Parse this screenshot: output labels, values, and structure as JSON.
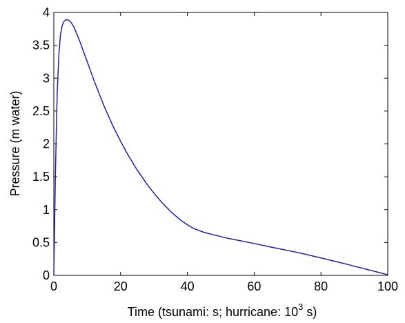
{
  "chart_data": {
    "type": "line",
    "title": "",
    "xlabel": "Time (tsunami: s; hurricane: 10",
    "xlabel_sup": "3",
    "xlabel_tail": " s)",
    "ylabel": "Pressure (m water)",
    "xlim": [
      0,
      100
    ],
    "ylim": [
      0,
      4
    ],
    "xticks": [
      0,
      20,
      40,
      60,
      80,
      100
    ],
    "yticks": [
      0,
      0.5,
      1,
      1.5,
      2,
      2.5,
      3,
      3.5,
      4
    ],
    "xtick_labels": [
      "0",
      "20",
      "40",
      "60",
      "80",
      "100"
    ],
    "ytick_labels": [
      "0",
      "0.5",
      "1",
      "1.5",
      "2",
      "2.5",
      "3",
      "3.5",
      "4"
    ],
    "grid": false,
    "line_color": "#1f1f9e",
    "series": [
      {
        "x": [
          0,
          0.5,
          1,
          1.5,
          2,
          2.5,
          3,
          3.5,
          4,
          4.5,
          5,
          6,
          7,
          8,
          10,
          12,
          15,
          18,
          20,
          22,
          25,
          28,
          30,
          32,
          35,
          38,
          40,
          42,
          45,
          48,
          50,
          52,
          55,
          60,
          65,
          70,
          75,
          80,
          85,
          90,
          95,
          100
        ],
        "y": [
          0,
          1.6,
          2.75,
          3.35,
          3.66,
          3.8,
          3.86,
          3.885,
          3.89,
          3.88,
          3.86,
          3.78,
          3.66,
          3.53,
          3.25,
          2.97,
          2.58,
          2.24,
          2.04,
          1.85,
          1.6,
          1.38,
          1.25,
          1.13,
          0.97,
          0.84,
          0.77,
          0.71,
          0.655,
          0.615,
          0.59,
          0.565,
          0.535,
          0.485,
          0.43,
          0.38,
          0.325,
          0.265,
          0.205,
          0.14,
          0.075,
          0.01
        ]
      }
    ]
  }
}
